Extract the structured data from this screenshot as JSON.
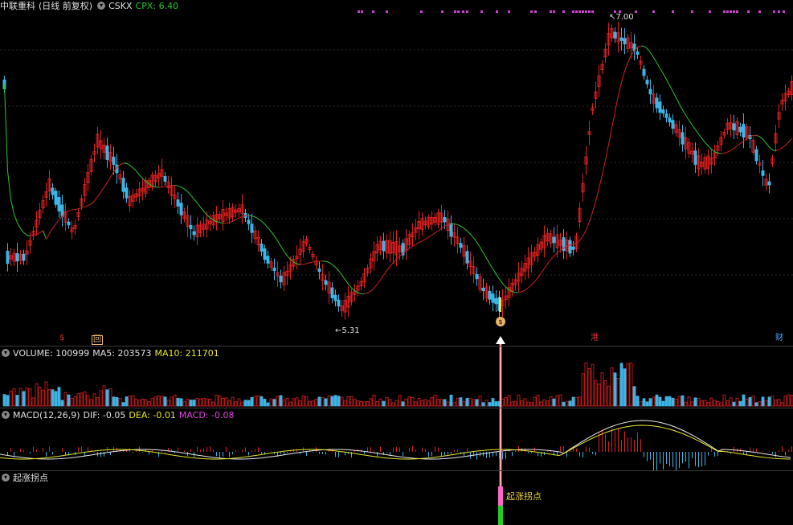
{
  "header": {
    "stock_name": "中联重科",
    "period": "(日线 前复权)",
    "indicator": "CSKX",
    "cpx_label": "CPX: 6.40"
  },
  "price_markers": {
    "high_label": "7.00",
    "low_label": "5.31",
    "buy_icon_text": "$"
  },
  "events": [
    {
      "text": "$",
      "color": "#e03030"
    },
    {
      "text": "回",
      "color": "#e8b46a"
    },
    {
      "text": "港",
      "color": "#e03030"
    },
    {
      "text": "财",
      "color": "#4aa8ff"
    }
  ],
  "volume_panel": {
    "title": "VOLUME: 100999",
    "ma5": "MA5: 203573",
    "ma10": "MA10: 211701"
  },
  "macd_panel": {
    "title": "MACD(12,26,9)",
    "dif": "DIF: -0.05",
    "dea": "DEA: -0.01",
    "macd": "MACD: -0.08"
  },
  "signal_panel": {
    "title": "起涨拐点",
    "signal_label": "起涨拐点"
  },
  "colors": {
    "up": "#e02020",
    "down": "#3cb4e6",
    "ma_red": "#d02020",
    "ma_green": "#2ec42e",
    "dif": "#e8e8e8",
    "dea": "#e6e62e",
    "macd": "#e040e0",
    "cpx": "#2ec42e",
    "signal_pink": "#ff66cc",
    "signal_green": "#22cc22"
  }
}
